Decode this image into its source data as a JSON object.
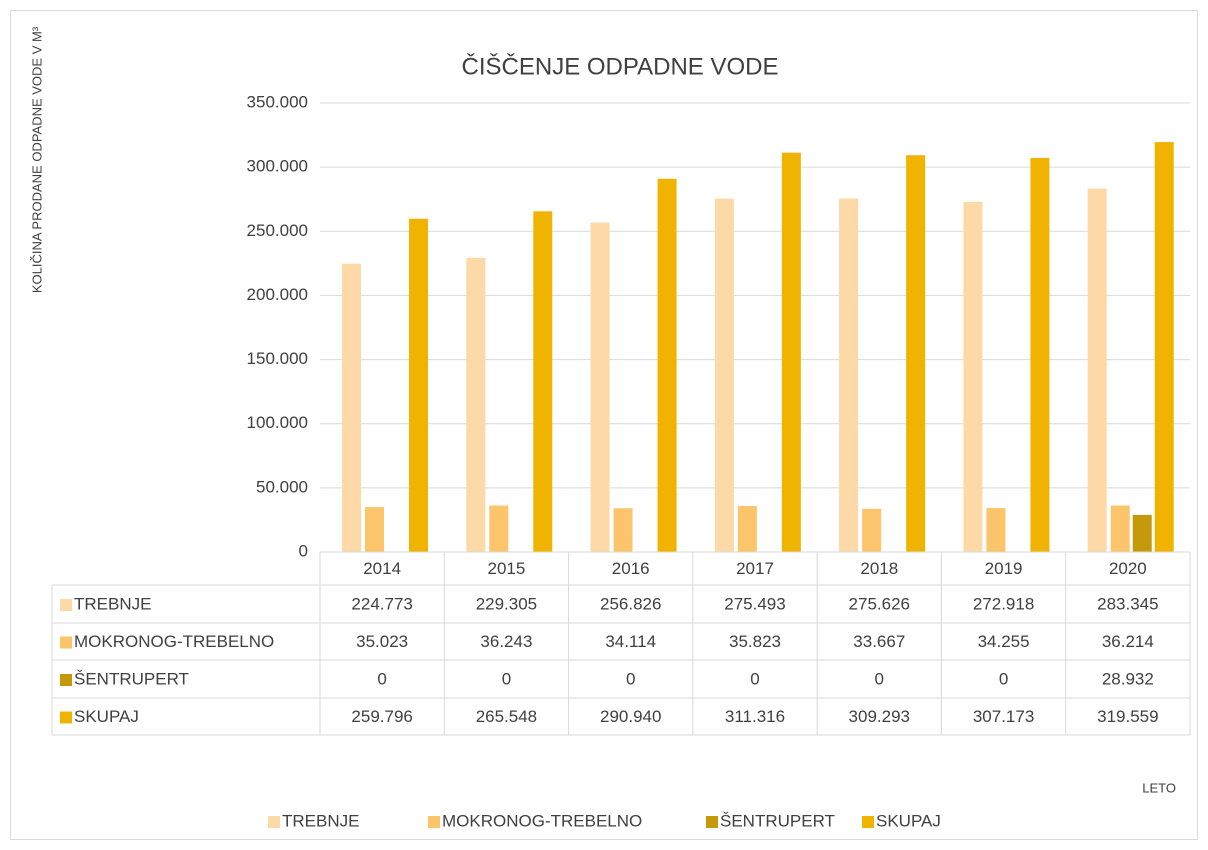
{
  "chart_data": {
    "type": "bar",
    "title": "ČIŠČENJE ODPADNE VODE",
    "y_label": "KOLIČINA PRODANE ODPADNE VODE V M³",
    "x_label": "LETO",
    "categories": [
      "2014",
      "2015",
      "2016",
      "2017",
      "2018",
      "2019",
      "2020"
    ],
    "series": [
      {
        "name": "TREBNJE",
        "color": "#fdd9a8",
        "values": [
          224773,
          229305,
          256826,
          275493,
          275626,
          272918,
          283345
        ],
        "value_labels": [
          "224.773",
          "229.305",
          "256.826",
          "275.493",
          "275.626",
          "272.918",
          "283.345"
        ]
      },
      {
        "name": "MOKRONOG-TREBELNO",
        "color": "#fcc46b",
        "values": [
          35023,
          36243,
          34114,
          35823,
          33667,
          34255,
          36214
        ],
        "value_labels": [
          "35.023",
          "36.243",
          "34.114",
          "35.823",
          "33.667",
          "34.255",
          "36.214"
        ]
      },
      {
        "name": "ŠENTRUPERT",
        "color": "#c49a0a",
        "values": [
          0,
          0,
          0,
          0,
          0,
          0,
          28932
        ],
        "value_labels": [
          "0",
          "0",
          "0",
          "0",
          "0",
          "0",
          "28.932"
        ]
      },
      {
        "name": "SKUPAJ",
        "color": "#f0b400",
        "values": [
          259796,
          265548,
          290940,
          311316,
          309293,
          307173,
          319559
        ],
        "value_labels": [
          "259.796",
          "265.548",
          "290.940",
          "311.316",
          "309.293",
          "307.173",
          "319.559"
        ]
      }
    ],
    "ylim": [
      0,
      350000
    ],
    "yticks": [
      0,
      {
        "value": 50000,
        "label": "50.000"
      },
      {
        "value": 100000,
        "label": "100.000"
      },
      {
        "value": 150000,
        "label": "150.000"
      },
      {
        "value": 200000,
        "label": "200.000"
      },
      {
        "value": 250000,
        "label": "250.000"
      },
      {
        "value": 300000,
        "label": "300.000"
      },
      {
        "value": 350000,
        "label": "350.000"
      }
    ],
    "grid": true,
    "legend": "bottom"
  }
}
